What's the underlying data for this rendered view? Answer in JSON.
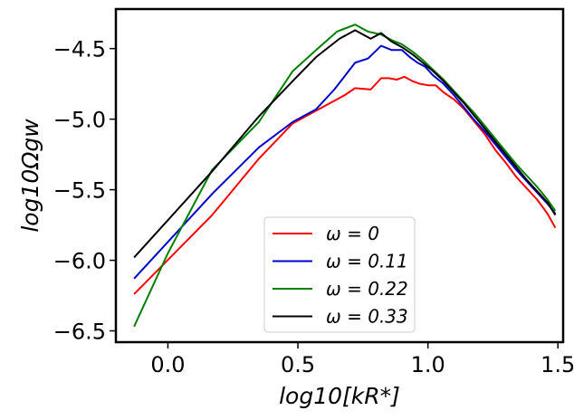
{
  "chart_data": {
    "type": "line",
    "title": "",
    "xlabel": "log10[kR*]",
    "ylabel": "log10Ωgw",
    "xlim": [
      -0.2,
      1.52
    ],
    "ylim": [
      -6.58,
      -4.22
    ],
    "xticks": [
      0.0,
      0.5,
      1.0,
      1.5
    ],
    "xtick_labels": [
      "0.0",
      "0.5",
      "1.0",
      "1.5"
    ],
    "yticks": [
      -6.5,
      -6.0,
      -5.5,
      -5.0,
      -4.5
    ],
    "ytick_labels": [
      "−6.5",
      "−6.0",
      "−5.5",
      "−5.0",
      "−4.5"
    ],
    "grid": false,
    "legend_position": "lower-center",
    "series": [
      {
        "name": "ω = 0",
        "label": "ω = 0",
        "color": "#ff0000",
        "x": [
          -0.13,
          0.17,
          0.35,
          0.48,
          0.58,
          0.68,
          0.72,
          0.78,
          0.82,
          0.85,
          0.88,
          0.91,
          0.94,
          0.97,
          1.0,
          1.03,
          1.06,
          1.1,
          1.14,
          1.18,
          1.22,
          1.26,
          1.3,
          1.34,
          1.38,
          1.42,
          1.46,
          1.49
        ],
        "y": [
          -6.24,
          -5.68,
          -5.28,
          -5.03,
          -4.93,
          -4.83,
          -4.78,
          -4.79,
          -4.71,
          -4.71,
          -4.72,
          -4.7,
          -4.73,
          -4.75,
          -4.76,
          -4.76,
          -4.81,
          -4.86,
          -4.93,
          -5.02,
          -5.11,
          -5.22,
          -5.31,
          -5.41,
          -5.49,
          -5.57,
          -5.67,
          -5.77
        ]
      },
      {
        "name": "ω = 0.11",
        "label": "ω = 0.11",
        "color": "#0000cc",
        "x": [
          -0.13,
          0.17,
          0.35,
          0.48,
          0.57,
          0.64,
          0.72,
          0.77,
          0.82,
          0.86,
          0.9,
          0.93,
          0.96,
          0.99,
          1.02,
          1.06,
          1.1,
          1.14,
          1.18,
          1.22,
          1.26,
          1.3,
          1.34,
          1.38,
          1.42,
          1.46,
          1.49
        ],
        "y": [
          -6.13,
          -5.53,
          -5.2,
          -5.02,
          -4.93,
          -4.79,
          -4.6,
          -4.57,
          -4.48,
          -4.51,
          -4.51,
          -4.56,
          -4.6,
          -4.63,
          -4.69,
          -4.75,
          -4.83,
          -4.92,
          -5.01,
          -5.09,
          -5.18,
          -5.27,
          -5.36,
          -5.44,
          -5.52,
          -5.6,
          -5.67
        ]
      },
      {
        "name": "ω = 0.22",
        "label": "ω = 0.22",
        "color": "#008000",
        "x": [
          -0.13,
          0.0,
          0.17,
          0.35,
          0.48,
          0.57,
          0.65,
          0.72,
          0.77,
          0.82,
          0.86,
          0.9,
          0.94,
          0.98,
          1.02,
          1.06,
          1.1,
          1.14,
          1.18,
          1.22,
          1.26,
          1.3,
          1.34,
          1.38,
          1.42,
          1.46,
          1.49
        ],
        "y": [
          -6.47,
          -5.95,
          -5.36,
          -5.02,
          -4.66,
          -4.51,
          -4.38,
          -4.33,
          -4.38,
          -4.4,
          -4.44,
          -4.47,
          -4.52,
          -4.58,
          -4.65,
          -4.72,
          -4.8,
          -4.88,
          -4.96,
          -5.05,
          -5.14,
          -5.23,
          -5.32,
          -5.4,
          -5.48,
          -5.57,
          -5.65
        ]
      },
      {
        "name": "ω = 0.33",
        "label": "ω = 0.33",
        "color": "#000000",
        "x": [
          -0.13,
          0.17,
          0.35,
          0.48,
          0.57,
          0.66,
          0.72,
          0.78,
          0.82,
          0.86,
          0.9,
          0.94,
          0.98,
          1.02,
          1.06,
          1.1,
          1.14,
          1.18,
          1.22,
          1.26,
          1.3,
          1.34,
          1.38,
          1.42,
          1.46,
          1.49
        ],
        "y": [
          -5.98,
          -5.37,
          -4.98,
          -4.73,
          -4.56,
          -4.43,
          -4.37,
          -4.43,
          -4.39,
          -4.45,
          -4.49,
          -4.54,
          -4.6,
          -4.66,
          -4.73,
          -4.81,
          -4.89,
          -4.98,
          -5.07,
          -5.16,
          -5.25,
          -5.34,
          -5.43,
          -5.51,
          -5.59,
          -5.68
        ]
      }
    ]
  }
}
